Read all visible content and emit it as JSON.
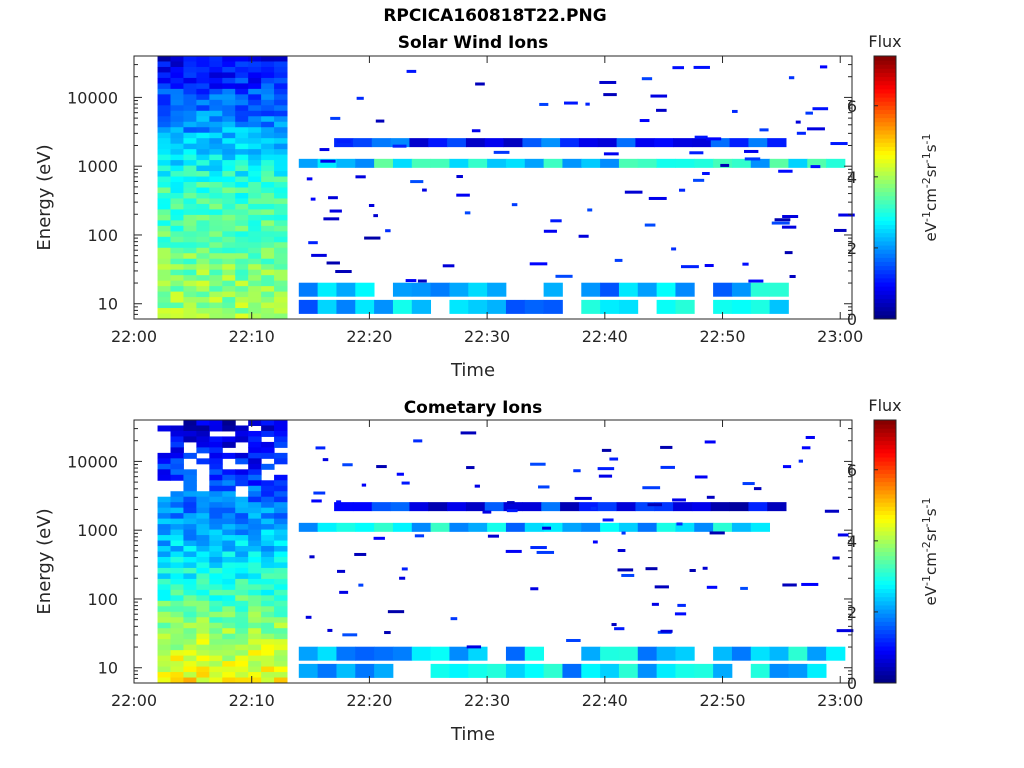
{
  "figure": {
    "title": "RPCICA160818T22.PNG"
  },
  "chart_data": [
    {
      "type": "heatmap",
      "title": "Solar Wind Ions",
      "xlabel": "Time",
      "ylabel": "Energy (eV)",
      "y_scale": "log",
      "ylim": [
        6,
        40000
      ],
      "xlim_minutes": [
        0,
        61
      ],
      "x_ticks": [
        "22:00",
        "22:10",
        "22:20",
        "22:30",
        "22:40",
        "22:50",
        "23:00"
      ],
      "y_ticks": [
        "10",
        "100",
        "1000",
        "10000"
      ],
      "y_tick_values": [
        10,
        100,
        1000,
        10000
      ],
      "colorbar": {
        "label": "Flux",
        "unit_label": "eV-1cm-2sr-1s-1",
        "range": [
          0,
          7.4
        ],
        "ticks": [
          "0",
          "2",
          "4",
          "6"
        ],
        "colormap": "jet"
      },
      "dense_block": {
        "start": "22:02",
        "end": "22:13",
        "approx_level_high_energy": 0.8,
        "approx_level_1keV": 3.2,
        "approx_level_low_energy": 4.0
      },
      "bands": [
        {
          "name": "",
          "energy_eV": 2200,
          "start": "22:17",
          "end": "22:54",
          "approx_level": 1.2
        },
        {
          "name": "",
          "energy_eV": 1100,
          "start": "22:14",
          "end": "23:00",
          "approx_level": 2.7
        },
        {
          "name": "",
          "energy_eV": 16,
          "start": "22:14",
          "end": "22:55",
          "approx_level": 2.3
        },
        {
          "name": "",
          "energy_eV": 9,
          "start": "22:14",
          "end": "22:55",
          "approx_level": 2.3
        }
      ]
    },
    {
      "type": "heatmap",
      "title": "Cometary Ions",
      "xlabel": "Time",
      "ylabel": "Energy (eV)",
      "y_scale": "log",
      "ylim": [
        6,
        40000
      ],
      "xlim_minutes": [
        0,
        61
      ],
      "x_ticks": [
        "22:00",
        "22:10",
        "22:20",
        "22:30",
        "22:40",
        "22:50",
        "23:00"
      ],
      "y_ticks": [
        "10",
        "100",
        "1000",
        "10000"
      ],
      "y_tick_values": [
        10,
        100,
        1000,
        10000
      ],
      "colorbar": {
        "label": "Flux",
        "unit_label": "eV-1cm-2sr-1s-1",
        "range": [
          0,
          7.4
        ],
        "ticks": [
          "0",
          "2",
          "4",
          "6"
        ],
        "colormap": "jet"
      },
      "dense_block": {
        "start": "22:02",
        "end": "22:13",
        "approx_level_high_energy": 0.6,
        "approx_level_1keV": 2.5,
        "approx_level_low_energy": 4.8
      },
      "bands": [
        {
          "name": "",
          "energy_eV": 2200,
          "start": "22:17",
          "end": "22:54",
          "approx_level": 1.0
        },
        {
          "name": "",
          "energy_eV": 1100,
          "start": "22:14",
          "end": "22:54",
          "approx_level": 2.4
        },
        {
          "name": "",
          "energy_eV": 16,
          "start": "22:14",
          "end": "23:00",
          "approx_level": 2.4
        },
        {
          "name": "",
          "energy_eV": 9,
          "start": "22:14",
          "end": "23:00",
          "approx_level": 2.4
        }
      ]
    }
  ]
}
